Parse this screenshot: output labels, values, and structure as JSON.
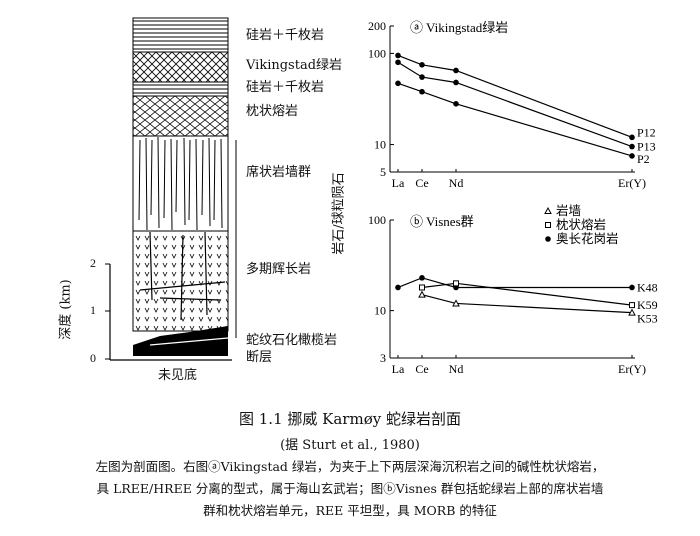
{
  "column": {
    "layers": [
      "硅岩＋千枚岩",
      "Vikingstad绿岩",
      "硅岩＋千枚岩",
      "枕状熔岩",
      "席状岩墙群",
      "多期辉长岩",
      "蛇纹石化橄榄岩",
      "断层"
    ],
    "bottom_label": "未见底",
    "depth_axis": {
      "label": "深度 (km)",
      "ticks": [
        "2",
        "1",
        "0"
      ]
    }
  },
  "chart_data": [
    {
      "type": "line",
      "title": "ⓐ Vikingstad绿岩",
      "categories": [
        "La",
        "Ce",
        "Nd",
        "Er(Y)"
      ],
      "ylabel": "岩石/球粒陨石",
      "yscale": "log",
      "ylim": [
        5,
        200
      ],
      "yticks": [
        "200",
        "100",
        "10",
        "5"
      ],
      "series": [
        {
          "name": "P12",
          "values": [
            95,
            75,
            65,
            12
          ]
        },
        {
          "name": "P13",
          "values": [
            80,
            55,
            48,
            9.5
          ]
        },
        {
          "name": "P2",
          "values": [
            47,
            38,
            28,
            7.5
          ]
        }
      ]
    },
    {
      "type": "line",
      "title": "ⓑ Visnes群",
      "categories": [
        "La",
        "Ce",
        "Nd",
        "Er(Y)"
      ],
      "yscale": "log",
      "ylim": [
        3,
        100
      ],
      "yticks": [
        "100",
        "10",
        "3"
      ],
      "legend": [
        "岩墙",
        "枕状熔岩",
        "奥长花岗岩"
      ],
      "series": [
        {
          "name": "K48",
          "values": [
            18,
            23,
            18,
            18
          ]
        },
        {
          "name": "K59",
          "values": [
            null,
            18,
            20,
            11.5
          ]
        },
        {
          "name": "K53",
          "values": [
            null,
            15,
            12,
            9.5
          ]
        }
      ]
    }
  ],
  "figure": {
    "title": "图 1.1    挪威 Karmøy 蛇绿岩剖面",
    "source": "(据 Sturt et al., 1980)",
    "caption": [
      "左图为剖面图。右图ⓐVikingstad 绿岩，为夹于上下两层深海沉积岩之间的碱性枕状熔岩，",
      "具 LREE/HREE 分离的型式，属于海山玄武岩；图ⓑVisnes 群包括蛇绿岩上部的席状岩墙",
      "群和枕状熔岩单元，REE 平坦型，具 MORB 的特征"
    ]
  }
}
